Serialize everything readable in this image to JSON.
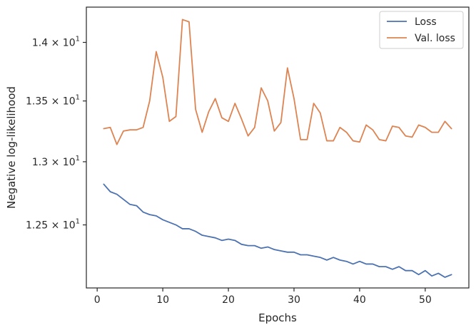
{
  "chart_data": {
    "type": "line",
    "xlabel": "Epochs",
    "ylabel": "Negative log-likelihood",
    "xlim": [
      -1.65,
      56.65
    ],
    "ylim": [
      12.02,
      14.31
    ],
    "y_scale": "log",
    "x_ticks": [
      0,
      10,
      20,
      30,
      40,
      50
    ],
    "x_tick_labels": [
      "0",
      "10",
      "20",
      "30",
      "40",
      "50"
    ],
    "y_ticks": [
      12.5,
      13.0,
      13.5,
      14.0
    ],
    "y_tick_labels": [
      {
        "mantissa": "1.25",
        "base": "10",
        "exp": "1"
      },
      {
        "mantissa": "1.3",
        "base": "10",
        "exp": "1"
      },
      {
        "mantissa": "1.35",
        "base": "10",
        "exp": "1"
      },
      {
        "mantissa": "1.4",
        "base": "10",
        "exp": "1"
      }
    ],
    "legend_position": "upper right",
    "grid": false,
    "x": [
      1,
      2,
      3,
      4,
      5,
      6,
      7,
      8,
      9,
      10,
      11,
      12,
      13,
      14,
      15,
      16,
      17,
      18,
      19,
      20,
      21,
      22,
      23,
      24,
      25,
      26,
      27,
      28,
      29,
      30,
      31,
      32,
      33,
      34,
      35,
      36,
      37,
      38,
      39,
      40,
      41,
      42,
      43,
      44,
      45,
      46,
      47,
      48,
      49,
      50,
      51,
      52,
      53,
      54
    ],
    "series": [
      {
        "name": "Loss",
        "color": "#4c72b0",
        "values": [
          12.82,
          12.76,
          12.74,
          12.7,
          12.66,
          12.65,
          12.6,
          12.58,
          12.57,
          12.54,
          12.52,
          12.5,
          12.47,
          12.47,
          12.45,
          12.42,
          12.41,
          12.4,
          12.38,
          12.39,
          12.38,
          12.35,
          12.34,
          12.34,
          12.32,
          12.33,
          12.31,
          12.3,
          12.29,
          12.29,
          12.27,
          12.27,
          12.26,
          12.25,
          12.23,
          12.25,
          12.23,
          12.22,
          12.2,
          12.22,
          12.2,
          12.2,
          12.18,
          12.18,
          12.16,
          12.18,
          12.15,
          12.15,
          12.12,
          12.15,
          12.11,
          12.13,
          12.1,
          12.12
        ]
      },
      {
        "name": "Val. loss",
        "color": "#dd8452",
        "values": [
          13.27,
          13.28,
          13.14,
          13.25,
          13.26,
          13.26,
          13.28,
          13.5,
          13.92,
          13.7,
          13.33,
          13.37,
          14.2,
          14.18,
          13.43,
          13.24,
          13.41,
          13.52,
          13.36,
          13.33,
          13.48,
          13.35,
          13.21,
          13.28,
          13.61,
          13.5,
          13.25,
          13.32,
          13.78,
          13.52,
          13.18,
          13.18,
          13.48,
          13.4,
          13.17,
          13.17,
          13.28,
          13.24,
          13.17,
          13.16,
          13.3,
          13.26,
          13.18,
          13.17,
          13.29,
          13.28,
          13.21,
          13.2,
          13.3,
          13.28,
          13.24,
          13.24,
          13.33,
          13.27
        ]
      }
    ]
  }
}
